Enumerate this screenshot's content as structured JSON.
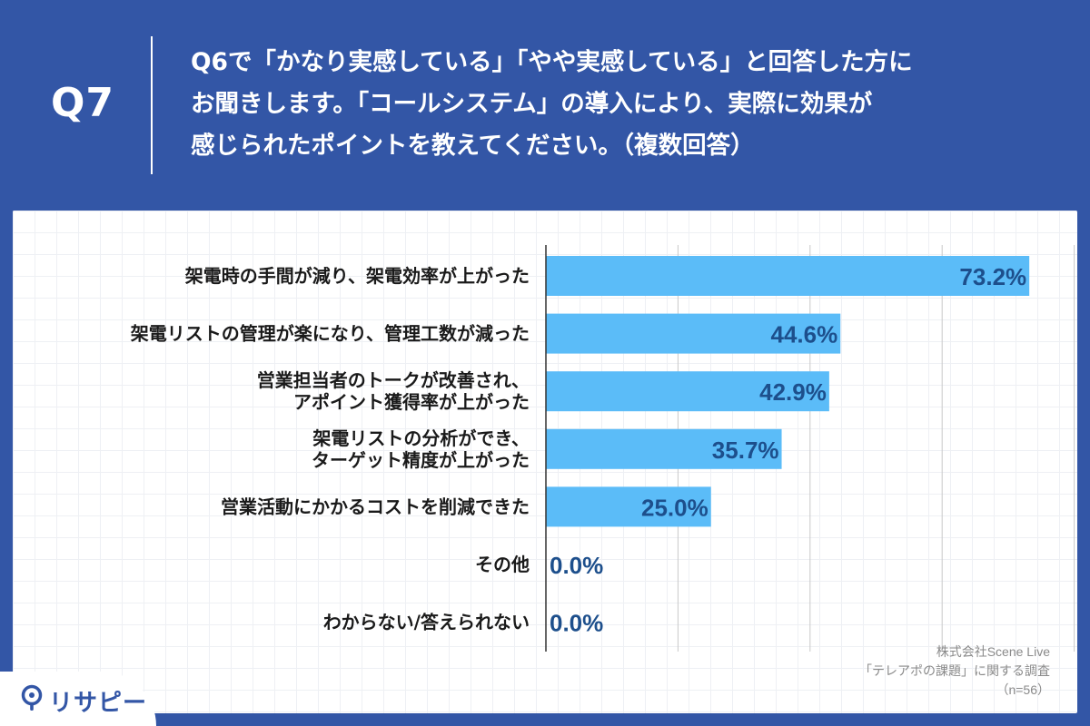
{
  "header": {
    "q_number": "Q7",
    "question_lines": [
      "Q6で「かなり実感している」「やや実感している」と回答した方に",
      "お聞きします。「コールシステム」の導入により、実際に効果が",
      "感じられたポイントを教えてください。（複数回答）"
    ]
  },
  "source": {
    "company": "株式会社Scene Live",
    "survey": "「テレアポの課題」に関する調査",
    "sample": "（n=56）"
  },
  "logo": {
    "text": "リサピー"
  },
  "colors": {
    "background": "#3356a6",
    "bar": "#5bbcf8",
    "value_label": "#1d4f8c",
    "category_label": "#1a1a1a",
    "gridline": "#c9c9c9"
  },
  "chart_data": {
    "type": "bar",
    "orientation": "horizontal",
    "categories": [
      [
        "架電時の手間が減り、架電効率が上がった"
      ],
      [
        "架電リストの管理が楽になり、管理工数が減った"
      ],
      [
        "営業担当者のトークが改善され、",
        "アポイント獲得率が上がった"
      ],
      [
        "架電リストの分析ができ、",
        "ターゲット精度が上がった"
      ],
      [
        "営業活動にかかるコストを削減できた"
      ],
      [
        "その他"
      ],
      [
        "わからない/答えられない"
      ]
    ],
    "values": [
      73.2,
      44.6,
      42.9,
      35.7,
      25.0,
      0.0,
      0.0
    ],
    "value_labels": [
      "73.2%",
      "44.6%",
      "42.9%",
      "35.7%",
      "25.0%",
      "0.0%",
      "0.0%"
    ],
    "xlim": [
      0,
      80
    ],
    "gridlines_at": [
      0,
      20,
      40,
      60,
      80
    ],
    "grid": true,
    "legend": "none"
  }
}
